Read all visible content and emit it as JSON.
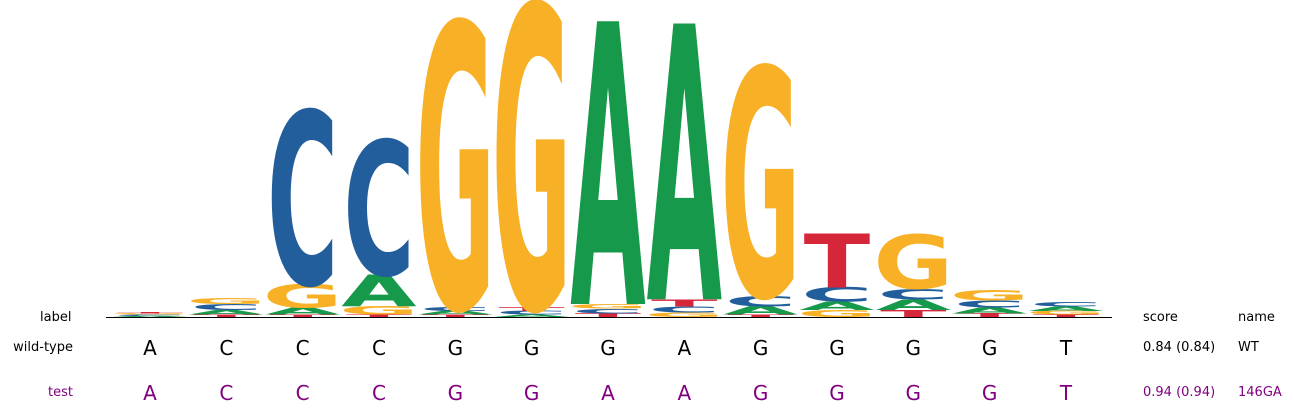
{
  "header": {
    "label_col": "label",
    "score_col": "score",
    "name_col": "name"
  },
  "colors": {
    "A": "#16994a",
    "C": "#225e9c",
    "G": "#f8b126",
    "T": "#d6263a",
    "test_row": "#800080",
    "wt_row": "#000000"
  },
  "motif": {
    "alphabet": [
      "A",
      "C",
      "G",
      "T"
    ],
    "positions": [
      {
        "A": 0.01,
        "C": 0.01,
        "G": 0.01,
        "T": 0.01
      },
      {
        "A": 0.04,
        "C": 0.05,
        "G": 0.05,
        "T": 0.02
      },
      {
        "A": 0.06,
        "C": 1.47,
        "G": 0.2,
        "T": 0.02
      },
      {
        "A": 0.27,
        "C": 1.14,
        "G": 0.07,
        "T": 0.02
      },
      {
        "A": 0.03,
        "C": 0.03,
        "G": 2.42,
        "T": 0.02
      },
      {
        "A": 0.02,
        "C": 0.03,
        "G": 2.57,
        "T": 0.03
      },
      {
        "A": 2.4,
        "C": 0.04,
        "G": 0.04,
        "T": 0.03
      },
      {
        "A": 2.34,
        "C": 0.05,
        "G": 0.04,
        "T": 0.06
      },
      {
        "A": 0.07,
        "C": 0.09,
        "G": 1.94,
        "T": 0.02
      },
      {
        "A": 0.07,
        "C": 0.12,
        "G": 0.06,
        "T": 0.46
      },
      {
        "A": 0.09,
        "C": 0.09,
        "G": 0.46,
        "T": 0.06
      },
      {
        "A": 0.05,
        "C": 0.06,
        "G": 0.09,
        "T": 0.03
      },
      {
        "A": 0.04,
        "C": 0.04,
        "G": 0.03,
        "T": 0.02
      }
    ]
  },
  "rows": [
    {
      "label": "wild-type",
      "sequence": [
        "A",
        "C",
        "C",
        "C",
        "G",
        "G",
        "G",
        "A",
        "G",
        "G",
        "G",
        "G",
        "T"
      ],
      "score": "0.84 (0.84)",
      "name": "WT",
      "variant": "wt"
    },
    {
      "label": "test",
      "sequence": [
        "A",
        "C",
        "C",
        "C",
        "G",
        "G",
        "A",
        "A",
        "G",
        "G",
        "G",
        "G",
        "T"
      ],
      "score": "0.94 (0.94)",
      "name": "146GA",
      "variant": "test"
    }
  ]
}
